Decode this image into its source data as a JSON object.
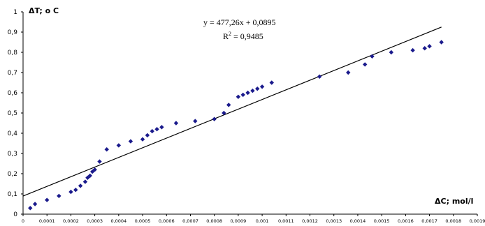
{
  "chart_data": {
    "type": "scatter",
    "title": "",
    "ylabel": "ΔT; o C",
    "xlabel": "ΔC; mol/l",
    "xlim": [
      0,
      0.0019
    ],
    "ylim": [
      0,
      1
    ],
    "x_ticks": [
      "0",
      "0,0001",
      "0,0002",
      "0,0003",
      "0,0004",
      "0,0005",
      "0,0006",
      "0,0007",
      "0,0008",
      "0,0009",
      "0,001",
      "0,0011",
      "0,0012",
      "0,0013",
      "0,0014",
      "0,0015",
      "0,0016",
      "0,0017",
      "0,0018",
      "0,0019"
    ],
    "y_ticks": [
      "0",
      "0,1",
      "0,2",
      "0,3",
      "0,4",
      "0,5",
      "0,6",
      "0,7",
      "0,8",
      "0,9",
      "1"
    ],
    "grid": false,
    "marker_color": "#1a1a8c",
    "trendline": {
      "slope": 477.26,
      "intercept": 0.0895,
      "color": "#000000",
      "equation": "y = 477,26x + 0,0895",
      "r2_label": "R",
      "r2_sup": "2",
      "r2_value": " = 0,9485"
    },
    "points": [
      [
        3e-05,
        0.03
      ],
      [
        5e-05,
        0.05
      ],
      [
        0.0001,
        0.07
      ],
      [
        0.00015,
        0.09
      ],
      [
        0.0002,
        0.11
      ],
      [
        0.00022,
        0.12
      ],
      [
        0.00024,
        0.14
      ],
      [
        0.00026,
        0.16
      ],
      [
        0.00027,
        0.18
      ],
      [
        0.00028,
        0.19
      ],
      [
        0.00029,
        0.21
      ],
      [
        0.0003,
        0.22
      ],
      [
        0.00032,
        0.26
      ],
      [
        0.00035,
        0.32
      ],
      [
        0.0004,
        0.34
      ],
      [
        0.00045,
        0.36
      ],
      [
        0.0005,
        0.37
      ],
      [
        0.00052,
        0.39
      ],
      [
        0.00054,
        0.41
      ],
      [
        0.00056,
        0.42
      ],
      [
        0.00058,
        0.43
      ],
      [
        0.00064,
        0.45
      ],
      [
        0.00072,
        0.46
      ],
      [
        0.0008,
        0.47
      ],
      [
        0.00084,
        0.5
      ],
      [
        0.00086,
        0.54
      ],
      [
        0.0009,
        0.58
      ],
      [
        0.00092,
        0.59
      ],
      [
        0.00094,
        0.6
      ],
      [
        0.00096,
        0.61
      ],
      [
        0.00098,
        0.62
      ],
      [
        0.001,
        0.63
      ],
      [
        0.00104,
        0.65
      ],
      [
        0.00124,
        0.68
      ],
      [
        0.00136,
        0.7
      ],
      [
        0.00143,
        0.74
      ],
      [
        0.00146,
        0.78
      ],
      [
        0.00154,
        0.8
      ],
      [
        0.00163,
        0.81
      ],
      [
        0.00168,
        0.82
      ],
      [
        0.0017,
        0.83
      ],
      [
        0.00175,
        0.85
      ]
    ]
  }
}
